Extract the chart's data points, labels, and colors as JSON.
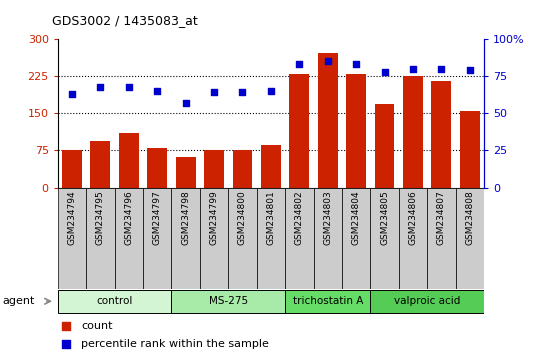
{
  "title": "GDS3002 / 1435083_at",
  "samples": [
    "GSM234794",
    "GSM234795",
    "GSM234796",
    "GSM234797",
    "GSM234798",
    "GSM234799",
    "GSM234800",
    "GSM234801",
    "GSM234802",
    "GSM234803",
    "GSM234804",
    "GSM234805",
    "GSM234806",
    "GSM234807",
    "GSM234808"
  ],
  "counts": [
    75,
    95,
    110,
    80,
    62,
    75,
    75,
    85,
    230,
    272,
    230,
    168,
    225,
    215,
    155
  ],
  "percentiles": [
    63,
    68,
    68,
    65,
    57,
    64,
    64,
    65,
    83,
    85,
    83,
    78,
    80,
    80,
    79
  ],
  "groups": [
    {
      "label": "control",
      "start": 0,
      "end": 3,
      "color": "#d4f5d4"
    },
    {
      "label": "MS-275",
      "start": 4,
      "end": 7,
      "color": "#a8eba8"
    },
    {
      "label": "trichostatin A",
      "start": 8,
      "end": 10,
      "color": "#66dd66"
    },
    {
      "label": "valproic acid",
      "start": 11,
      "end": 14,
      "color": "#55cc55"
    }
  ],
  "bar_color": "#cc2200",
  "dot_color": "#0000cc",
  "left_ylim": [
    0,
    300
  ],
  "right_ylim": [
    0,
    100
  ],
  "left_yticks": [
    0,
    75,
    150,
    225,
    300
  ],
  "right_yticks": [
    0,
    25,
    50,
    75,
    100
  ],
  "right_yticklabels": [
    "0",
    "25",
    "50",
    "75",
    "100%"
  ],
  "grid_values": [
    75,
    150,
    225
  ],
  "background_color": "#ffffff",
  "tick_bg_color": "#cccccc",
  "legend_items": [
    {
      "label": "count",
      "color": "#cc2200"
    },
    {
      "label": "percentile rank within the sample",
      "color": "#0000cc"
    }
  ]
}
